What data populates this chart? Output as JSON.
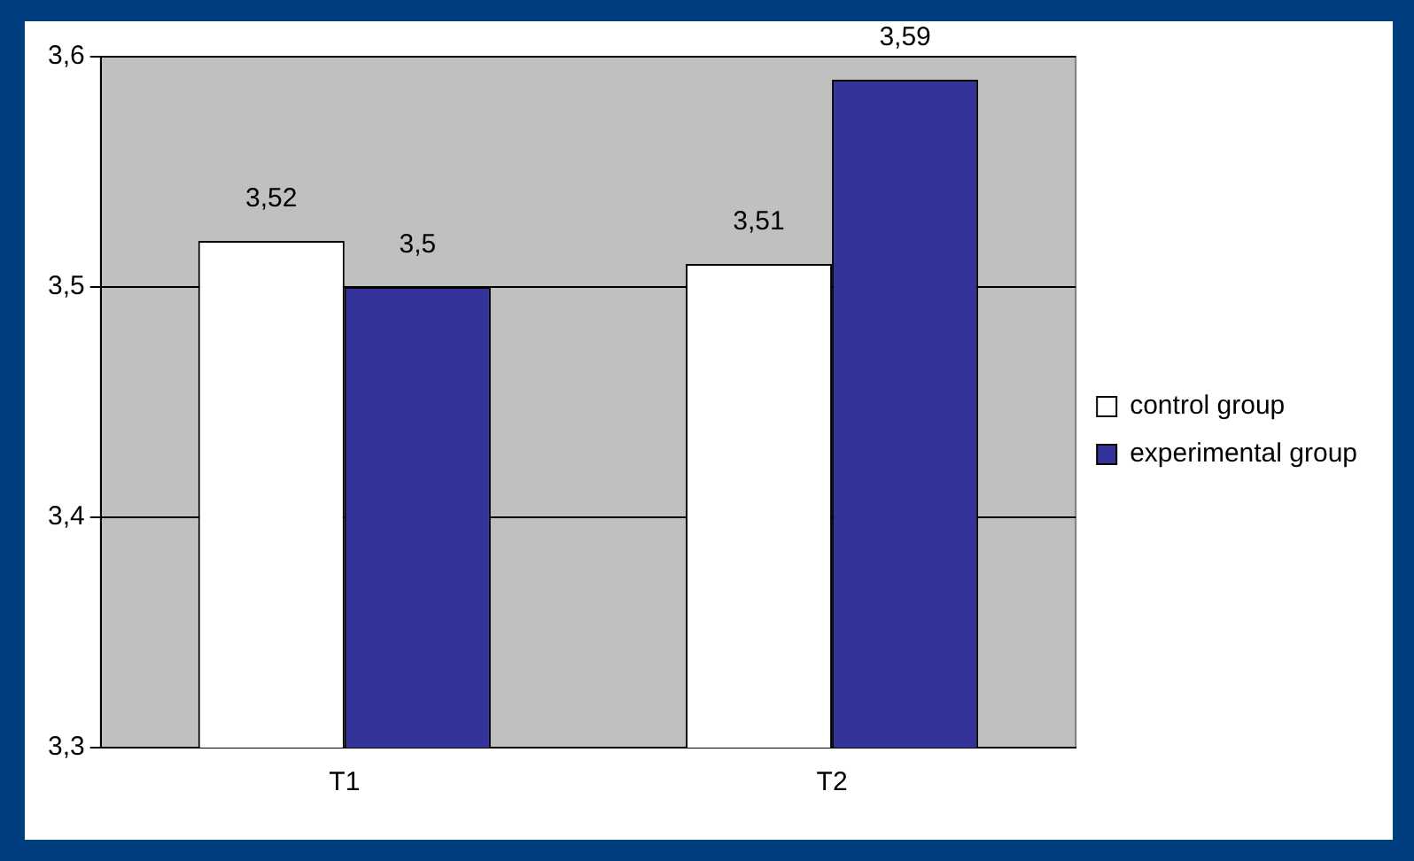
{
  "chart_data": {
    "type": "bar",
    "categories": [
      "T1",
      "T2"
    ],
    "series": [
      {
        "name": "control group",
        "color": "#ffffff",
        "values": [
          3.52,
          3.51
        ],
        "value_labels": [
          "3,52",
          "3,51"
        ]
      },
      {
        "name": "experimental group",
        "color": "#333399",
        "values": [
          3.5,
          3.59
        ],
        "value_labels": [
          "3,5",
          "3,59"
        ]
      }
    ],
    "ylim": [
      3.3,
      3.6
    ],
    "yticks": [
      {
        "value": 3.3,
        "label": "3,3"
      },
      {
        "value": 3.4,
        "label": "3,4"
      },
      {
        "value": 3.5,
        "label": "3,5"
      },
      {
        "value": 3.6,
        "label": "3,6"
      }
    ],
    "grid": "y",
    "legend": "right"
  }
}
